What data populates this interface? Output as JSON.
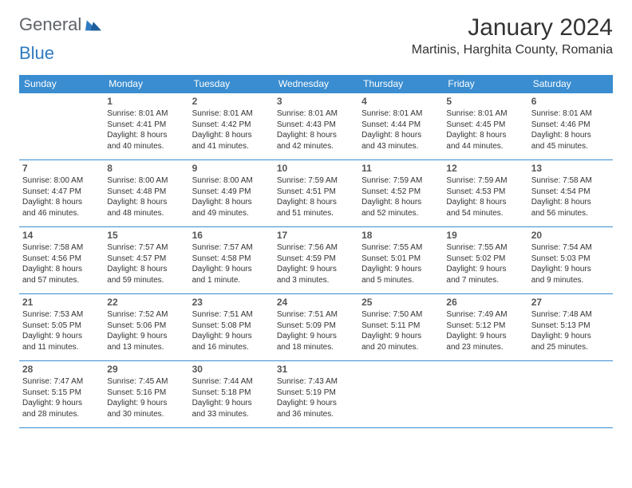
{
  "brand": {
    "part1": "General",
    "part2": "Blue"
  },
  "title": "January 2024",
  "location": "Martinis, Harghita County, Romania",
  "colors": {
    "header_bg": "#3a8dd0",
    "header_text": "#ffffff",
    "border": "#3a8dd0",
    "brand_gray": "#5f6368",
    "brand_blue": "#2f7bbf",
    "background": "#ffffff"
  },
  "day_headers": [
    "Sunday",
    "Monday",
    "Tuesday",
    "Wednesday",
    "Thursday",
    "Friday",
    "Saturday"
  ],
  "start_offset": 1,
  "cells": [
    {
      "n": "1",
      "sr": "Sunrise: 8:01 AM",
      "ss": "Sunset: 4:41 PM",
      "d1": "Daylight: 8 hours",
      "d2": "and 40 minutes."
    },
    {
      "n": "2",
      "sr": "Sunrise: 8:01 AM",
      "ss": "Sunset: 4:42 PM",
      "d1": "Daylight: 8 hours",
      "d2": "and 41 minutes."
    },
    {
      "n": "3",
      "sr": "Sunrise: 8:01 AM",
      "ss": "Sunset: 4:43 PM",
      "d1": "Daylight: 8 hours",
      "d2": "and 42 minutes."
    },
    {
      "n": "4",
      "sr": "Sunrise: 8:01 AM",
      "ss": "Sunset: 4:44 PM",
      "d1": "Daylight: 8 hours",
      "d2": "and 43 minutes."
    },
    {
      "n": "5",
      "sr": "Sunrise: 8:01 AM",
      "ss": "Sunset: 4:45 PM",
      "d1": "Daylight: 8 hours",
      "d2": "and 44 minutes."
    },
    {
      "n": "6",
      "sr": "Sunrise: 8:01 AM",
      "ss": "Sunset: 4:46 PM",
      "d1": "Daylight: 8 hours",
      "d2": "and 45 minutes."
    },
    {
      "n": "7",
      "sr": "Sunrise: 8:00 AM",
      "ss": "Sunset: 4:47 PM",
      "d1": "Daylight: 8 hours",
      "d2": "and 46 minutes."
    },
    {
      "n": "8",
      "sr": "Sunrise: 8:00 AM",
      "ss": "Sunset: 4:48 PM",
      "d1": "Daylight: 8 hours",
      "d2": "and 48 minutes."
    },
    {
      "n": "9",
      "sr": "Sunrise: 8:00 AM",
      "ss": "Sunset: 4:49 PM",
      "d1": "Daylight: 8 hours",
      "d2": "and 49 minutes."
    },
    {
      "n": "10",
      "sr": "Sunrise: 7:59 AM",
      "ss": "Sunset: 4:51 PM",
      "d1": "Daylight: 8 hours",
      "d2": "and 51 minutes."
    },
    {
      "n": "11",
      "sr": "Sunrise: 7:59 AM",
      "ss": "Sunset: 4:52 PM",
      "d1": "Daylight: 8 hours",
      "d2": "and 52 minutes."
    },
    {
      "n": "12",
      "sr": "Sunrise: 7:59 AM",
      "ss": "Sunset: 4:53 PM",
      "d1": "Daylight: 8 hours",
      "d2": "and 54 minutes."
    },
    {
      "n": "13",
      "sr": "Sunrise: 7:58 AM",
      "ss": "Sunset: 4:54 PM",
      "d1": "Daylight: 8 hours",
      "d2": "and 56 minutes."
    },
    {
      "n": "14",
      "sr": "Sunrise: 7:58 AM",
      "ss": "Sunset: 4:56 PM",
      "d1": "Daylight: 8 hours",
      "d2": "and 57 minutes."
    },
    {
      "n": "15",
      "sr": "Sunrise: 7:57 AM",
      "ss": "Sunset: 4:57 PM",
      "d1": "Daylight: 8 hours",
      "d2": "and 59 minutes."
    },
    {
      "n": "16",
      "sr": "Sunrise: 7:57 AM",
      "ss": "Sunset: 4:58 PM",
      "d1": "Daylight: 9 hours",
      "d2": "and 1 minute."
    },
    {
      "n": "17",
      "sr": "Sunrise: 7:56 AM",
      "ss": "Sunset: 4:59 PM",
      "d1": "Daylight: 9 hours",
      "d2": "and 3 minutes."
    },
    {
      "n": "18",
      "sr": "Sunrise: 7:55 AM",
      "ss": "Sunset: 5:01 PM",
      "d1": "Daylight: 9 hours",
      "d2": "and 5 minutes."
    },
    {
      "n": "19",
      "sr": "Sunrise: 7:55 AM",
      "ss": "Sunset: 5:02 PM",
      "d1": "Daylight: 9 hours",
      "d2": "and 7 minutes."
    },
    {
      "n": "20",
      "sr": "Sunrise: 7:54 AM",
      "ss": "Sunset: 5:03 PM",
      "d1": "Daylight: 9 hours",
      "d2": "and 9 minutes."
    },
    {
      "n": "21",
      "sr": "Sunrise: 7:53 AM",
      "ss": "Sunset: 5:05 PM",
      "d1": "Daylight: 9 hours",
      "d2": "and 11 minutes."
    },
    {
      "n": "22",
      "sr": "Sunrise: 7:52 AM",
      "ss": "Sunset: 5:06 PM",
      "d1": "Daylight: 9 hours",
      "d2": "and 13 minutes."
    },
    {
      "n": "23",
      "sr": "Sunrise: 7:51 AM",
      "ss": "Sunset: 5:08 PM",
      "d1": "Daylight: 9 hours",
      "d2": "and 16 minutes."
    },
    {
      "n": "24",
      "sr": "Sunrise: 7:51 AM",
      "ss": "Sunset: 5:09 PM",
      "d1": "Daylight: 9 hours",
      "d2": "and 18 minutes."
    },
    {
      "n": "25",
      "sr": "Sunrise: 7:50 AM",
      "ss": "Sunset: 5:11 PM",
      "d1": "Daylight: 9 hours",
      "d2": "and 20 minutes."
    },
    {
      "n": "26",
      "sr": "Sunrise: 7:49 AM",
      "ss": "Sunset: 5:12 PM",
      "d1": "Daylight: 9 hours",
      "d2": "and 23 minutes."
    },
    {
      "n": "27",
      "sr": "Sunrise: 7:48 AM",
      "ss": "Sunset: 5:13 PM",
      "d1": "Daylight: 9 hours",
      "d2": "and 25 minutes."
    },
    {
      "n": "28",
      "sr": "Sunrise: 7:47 AM",
      "ss": "Sunset: 5:15 PM",
      "d1": "Daylight: 9 hours",
      "d2": "and 28 minutes."
    },
    {
      "n": "29",
      "sr": "Sunrise: 7:45 AM",
      "ss": "Sunset: 5:16 PM",
      "d1": "Daylight: 9 hours",
      "d2": "and 30 minutes."
    },
    {
      "n": "30",
      "sr": "Sunrise: 7:44 AM",
      "ss": "Sunset: 5:18 PM",
      "d1": "Daylight: 9 hours",
      "d2": "and 33 minutes."
    },
    {
      "n": "31",
      "sr": "Sunrise: 7:43 AM",
      "ss": "Sunset: 5:19 PM",
      "d1": "Daylight: 9 hours",
      "d2": "and 36 minutes."
    }
  ]
}
